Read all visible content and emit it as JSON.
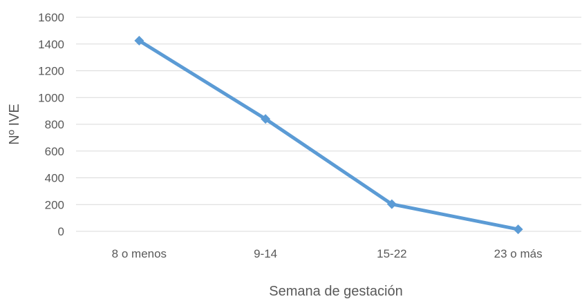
{
  "chart_data": {
    "type": "line",
    "title": "",
    "xlabel": "Semana de gestación",
    "ylabel": "Nº IVE",
    "categories": [
      "8 o menos",
      "9-14",
      "15-22",
      "23 o más"
    ],
    "series": [
      {
        "values": [
          1425,
          840,
          203,
          15
        ],
        "color": "#5B9BD5",
        "marker": "diamond"
      }
    ],
    "ylim": [
      0,
      1600
    ],
    "yticks": [
      0,
      200,
      400,
      600,
      800,
      1000,
      1200,
      1400,
      1600
    ],
    "grid": true,
    "legend": "none"
  }
}
